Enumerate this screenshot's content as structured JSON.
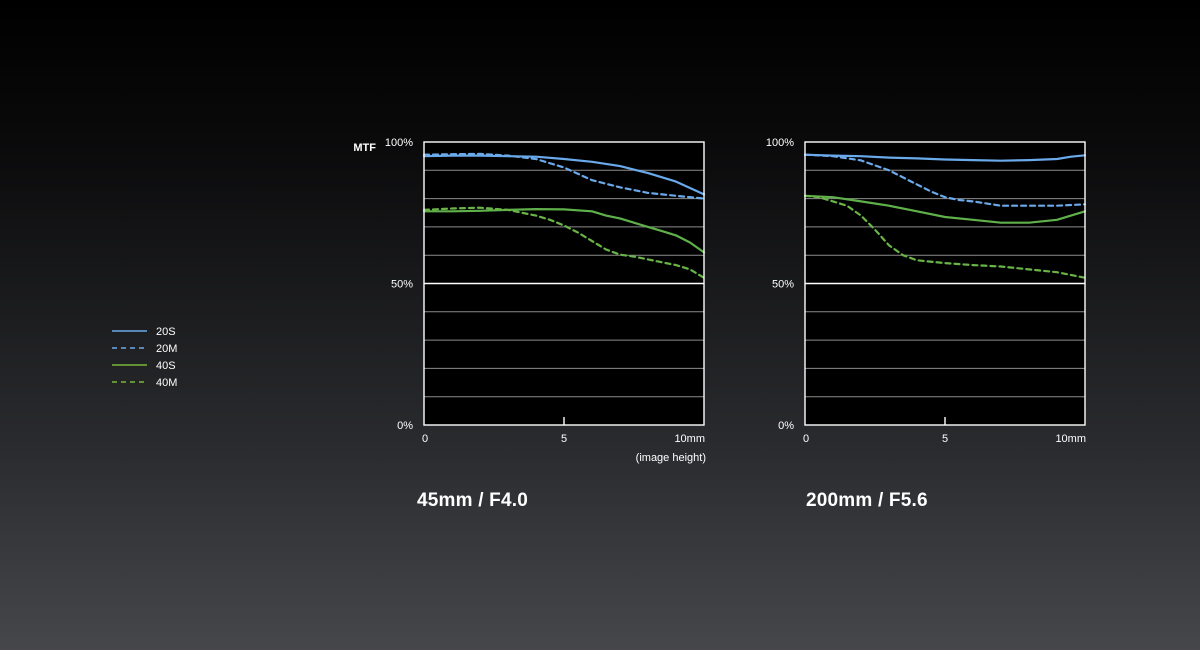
{
  "legend": [
    {
      "label": "20S",
      "color": "#6aa9ea",
      "dash": false
    },
    {
      "label": "20M",
      "color": "#6aa9ea",
      "dash": true
    },
    {
      "label": "40S",
      "color": "#79b83c",
      "dash": false
    },
    {
      "label": "40M",
      "color": "#79b83c",
      "dash": true
    }
  ],
  "colors": {
    "series_20": "#6aa9ea",
    "series_40_solid": "#5fb04a",
    "series_40_dashed": "#68b447"
  },
  "ylabel": "MTF",
  "xlabel_note": "(image height)",
  "chart_data": [
    {
      "type": "line",
      "title": "45mm / F4.0",
      "ylabel": "MTF",
      "xlabel": "(image height)",
      "xlim": [
        0,
        10
      ],
      "ylim": [
        0,
        100
      ],
      "x_ticks": [
        "0",
        "5",
        "10mm"
      ],
      "y_ticks": [
        "0%",
        "50%",
        "100%"
      ],
      "grid": true,
      "series": [
        {
          "name": "20S",
          "x": [
            0,
            1,
            2,
            3,
            4,
            5,
            6,
            7,
            8,
            9,
            10
          ],
          "y": [
            95,
            95.2,
            95.2,
            95,
            94.8,
            94,
            93,
            91.5,
            89,
            86,
            81.5
          ]
        },
        {
          "name": "20M",
          "x": [
            0,
            1,
            2,
            3,
            4,
            5,
            6,
            7,
            8,
            9,
            10
          ],
          "y": [
            95.5,
            95.7,
            95.8,
            95.2,
            94,
            91,
            86.5,
            84,
            82,
            81,
            80
          ]
        },
        {
          "name": "40S",
          "x": [
            0,
            1,
            2,
            3,
            4,
            5,
            6,
            6.5,
            7,
            7.5,
            8,
            8.5,
            9,
            9.5,
            10
          ],
          "y": [
            75.5,
            75.5,
            75.7,
            76,
            76.3,
            76.2,
            75.5,
            74,
            73,
            71.5,
            70,
            68.5,
            67,
            64.5,
            61
          ]
        },
        {
          "name": "40M",
          "x": [
            0,
            1,
            2,
            3,
            4,
            4.5,
            5,
            5.5,
            6,
            6.5,
            7,
            7.5,
            8,
            8.5,
            9,
            9.5,
            10
          ],
          "y": [
            76,
            76.5,
            76.8,
            76,
            74,
            72.5,
            70.5,
            68,
            65,
            62,
            60.2,
            59.5,
            58.5,
            57.5,
            56.5,
            55,
            52
          ]
        }
      ]
    },
    {
      "type": "line",
      "title": "200mm / F5.6",
      "ylabel": "",
      "xlabel": "",
      "xlim": [
        0,
        10
      ],
      "ylim": [
        0,
        100
      ],
      "x_ticks": [
        "0",
        "5",
        "10mm"
      ],
      "y_ticks": [
        "0%",
        "50%",
        "100%"
      ],
      "grid": true,
      "series": [
        {
          "name": "20S",
          "x": [
            0,
            1,
            2,
            3,
            4,
            5,
            6,
            7,
            8,
            9,
            9.5,
            10
          ],
          "y": [
            95.5,
            95.2,
            95,
            94.5,
            94.2,
            93.8,
            93.6,
            93.4,
            93.6,
            94,
            94.8,
            95.3
          ]
        },
        {
          "name": "20M",
          "x": [
            0,
            1,
            2,
            3,
            3.5,
            4,
            4.5,
            5,
            5.5,
            6,
            7,
            8,
            9,
            10
          ],
          "y": [
            95.5,
            95,
            93.5,
            90,
            87.5,
            85,
            82.5,
            80.5,
            79.5,
            79,
            77.5,
            77.5,
            77.5,
            78
          ]
        },
        {
          "name": "40S",
          "x": [
            0,
            1,
            2,
            3,
            4,
            5,
            6,
            7,
            8,
            9,
            9.5,
            10
          ],
          "y": [
            81,
            80.5,
            79,
            77.5,
            75.5,
            73.5,
            72.5,
            71.5,
            71.5,
            72.5,
            74,
            75.5
          ]
        },
        {
          "name": "40M",
          "x": [
            0,
            0.5,
            1,
            1.5,
            2,
            2.5,
            3,
            3.5,
            4,
            5,
            6,
            7,
            8,
            9,
            10
          ],
          "y": [
            81,
            80.5,
            79,
            77.5,
            74,
            69,
            63.5,
            60,
            58.2,
            57.2,
            56.5,
            56,
            55,
            54,
            52
          ]
        }
      ]
    }
  ]
}
